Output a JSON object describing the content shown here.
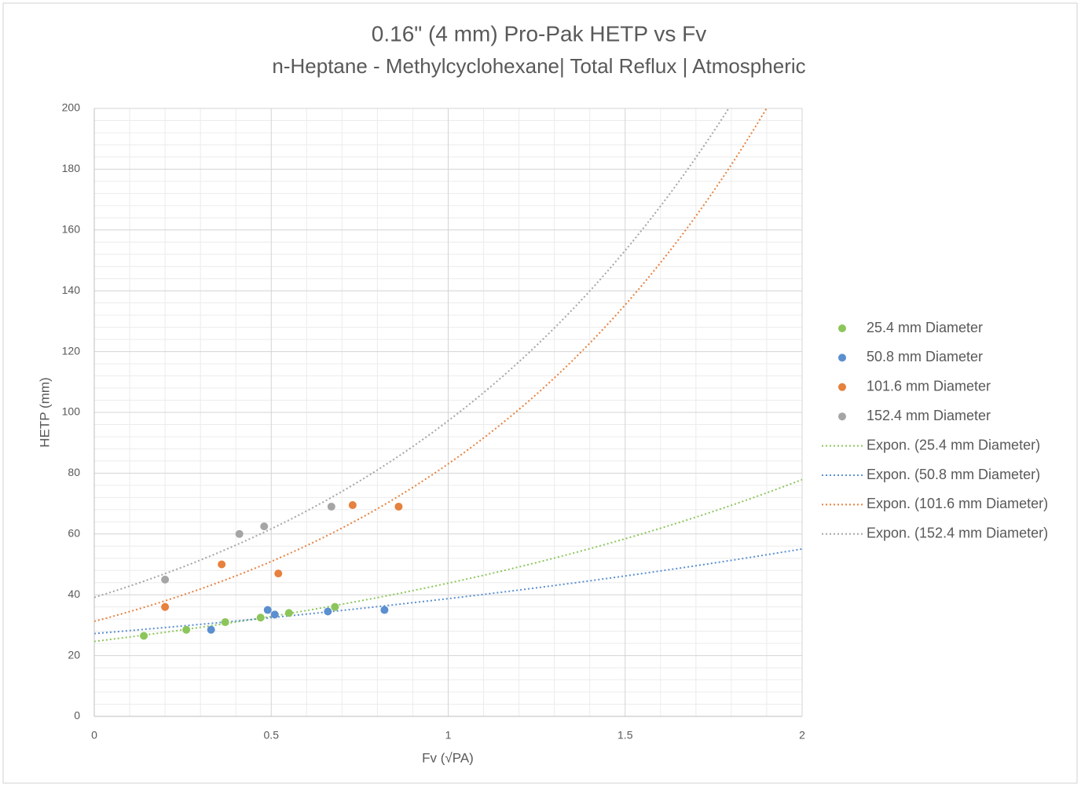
{
  "chart_data": {
    "type": "scatter",
    "title": "0.16\" (4 mm) Pro-Pak HETP vs Fv",
    "subtitle": "n-Heptane - Methylcyclohexane| Total Reflux | Atmospheric",
    "x_label": "Fv (√PA)",
    "y_label": "HETP (mm)",
    "xlim": [
      0,
      2
    ],
    "xticks": [
      0,
      0.5,
      1,
      1.5,
      2
    ],
    "ylim": [
      0,
      200
    ],
    "yticks": [
      0,
      20,
      40,
      60,
      80,
      100,
      120,
      140,
      160,
      180,
      200
    ],
    "grid": true,
    "minor_grid_divisions": 5,
    "legend": "right",
    "series": [
      {
        "name": "25.4 mm Diameter",
        "color": "#8cc65a",
        "x": [
          0.14,
          0.26,
          0.37,
          0.47,
          0.55,
          0.68
        ],
        "values": [
          26.5,
          28.5,
          31,
          32.5,
          34,
          36
        ],
        "trendline": {
          "name": "Expon. (25.4 mm Diameter)",
          "type": "exponential"
        }
      },
      {
        "name": "50.8 mm Diameter",
        "color": "#5b8fd0",
        "x": [
          0.33,
          0.49,
          0.51,
          0.66,
          0.82
        ],
        "values": [
          28.5,
          35,
          33.5,
          34.5,
          35
        ],
        "trendline": {
          "name": "Expon. (50.8 mm Diameter)",
          "type": "exponential"
        }
      },
      {
        "name": "101.6 mm Diameter",
        "color": "#e6813e",
        "x": [
          0.2,
          0.36,
          0.52,
          0.73,
          0.86
        ],
        "values": [
          36,
          50,
          47,
          69.5,
          69
        ],
        "trendline": {
          "name": "Expon. (101.6 mm Diameter)",
          "type": "exponential"
        }
      },
      {
        "name": "152.4 mm Diameter",
        "color": "#a5a5a5",
        "x": [
          0.2,
          0.41,
          0.48,
          0.67
        ],
        "values": [
          45,
          60,
          62.5,
          69
        ],
        "trendline": {
          "name": "Expon. (152.4 mm Diameter)",
          "type": "exponential"
        }
      }
    ]
  }
}
